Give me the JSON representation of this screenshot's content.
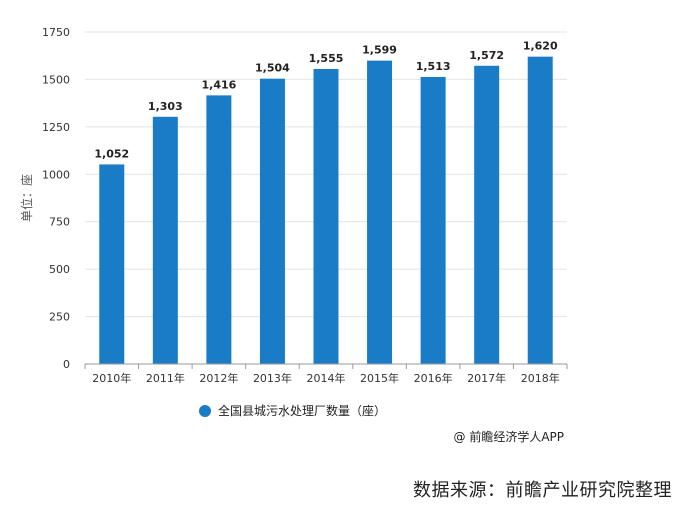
{
  "chart_data": {
    "type": "bar",
    "categories": [
      "2010年",
      "2011年",
      "2012年",
      "2013年",
      "2014年",
      "2015年",
      "2016年",
      "2017年",
      "2018年"
    ],
    "series": [
      {
        "name": "全国县城污水处理厂数量（座）",
        "values": [
          1052,
          1303,
          1416,
          1504,
          1555,
          1599,
          1513,
          1572,
          1620
        ]
      }
    ],
    "data_labels": [
      "1,052",
      "1,303",
      "1,416",
      "1,504",
      "1,555",
      "1,599",
      "1,513",
      "1,572",
      "1,620"
    ],
    "ylabel": "单位：座",
    "ylim": [
      0,
      1750
    ],
    "yticks": [
      0,
      250,
      500,
      750,
      1000,
      1250,
      1500,
      1750
    ],
    "grid": true,
    "bar_color": "#1a7cc7",
    "legend_position": "bottom"
  },
  "credit": "@ 前瞻经济学人APP",
  "source": "数据来源：前瞻产业研究院整理"
}
